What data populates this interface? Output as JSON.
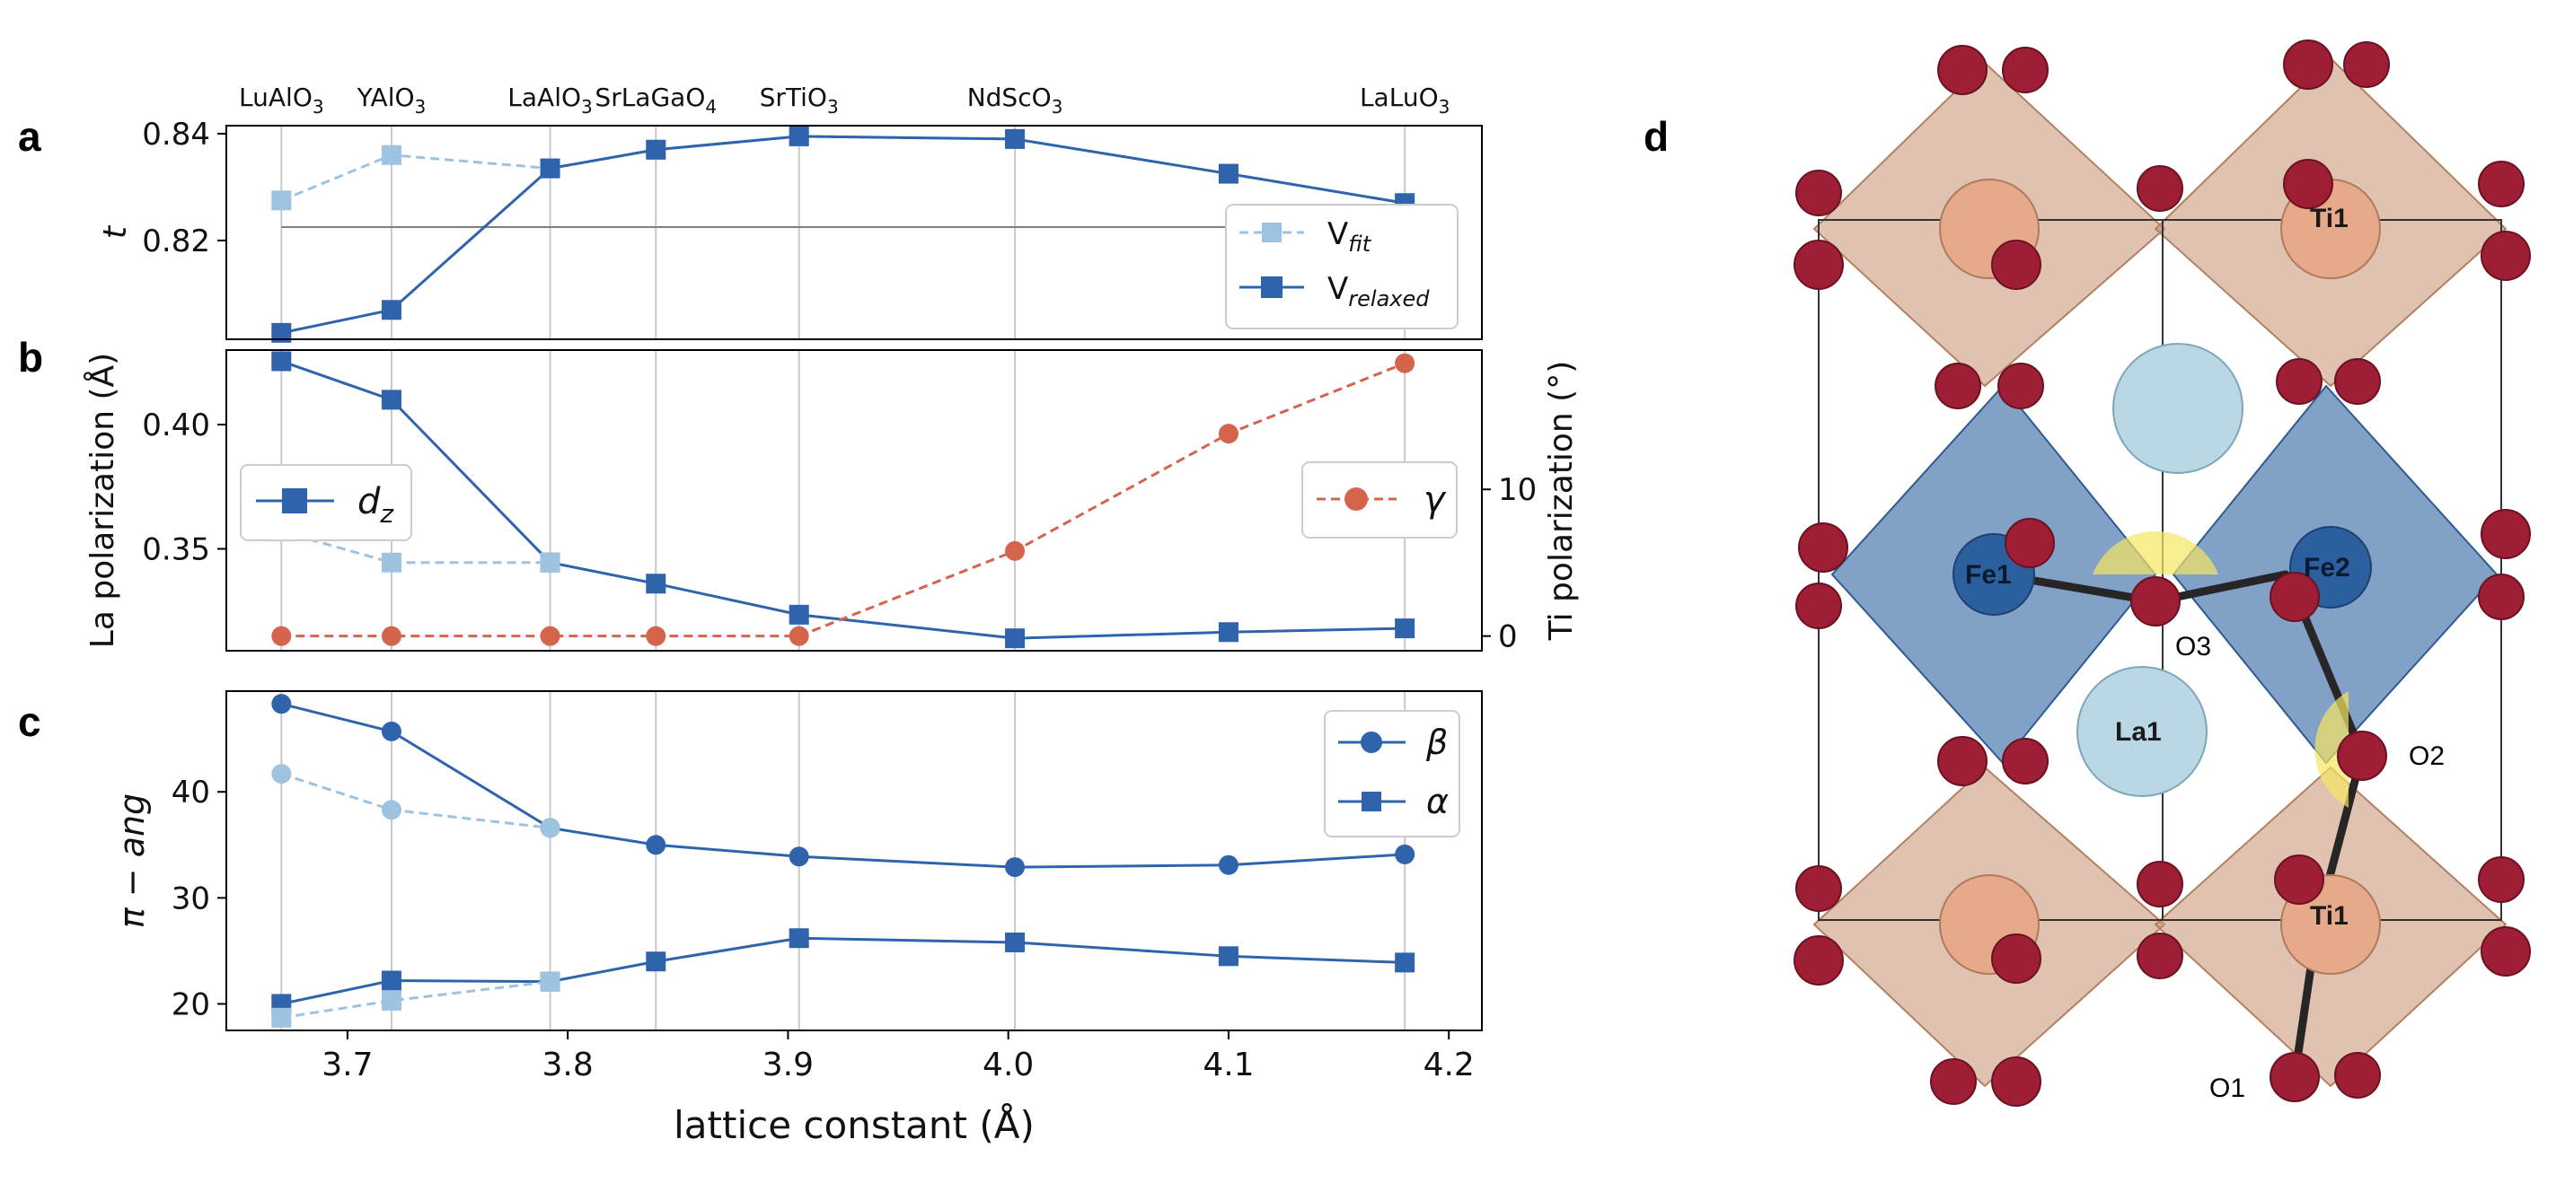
{
  "panel_labels": {
    "a": "a",
    "b": "b",
    "c": "c",
    "d": "d"
  },
  "colors": {
    "dark": "#2f64ad",
    "light": "#9dc3e0",
    "orange": "#d4654c",
    "grid": "#c8c8c8",
    "ref": "#7f7f7f"
  },
  "x_axis": {
    "label": "lattice constant (Å)",
    "range": [
      3.645,
      4.215
    ],
    "ticks": [
      "3.7",
      "3.8",
      "3.9",
      "4.0",
      "4.1",
      "4.2"
    ]
  },
  "substrates": [
    {
      "name": "LuAlO",
      "sub": "3",
      "x": 3.67
    },
    {
      "name": "YAlO",
      "sub": "3",
      "x": 3.72
    },
    {
      "name": "LaAlO",
      "sub": "3",
      "x": 3.792
    },
    {
      "name": "SrLaGaO",
      "sub": "4",
      "x": 3.84
    },
    {
      "name": "SrTiO",
      "sub": "3",
      "x": 3.905
    },
    {
      "name": "NdScO",
      "sub": "3",
      "x": 4.003
    },
    {
      "name": "LaLuO",
      "sub": "3",
      "x": 4.18
    }
  ],
  "chart_data": [
    {
      "panel": "a",
      "type": "line",
      "ylabel": "t",
      "ylim": [
        0.8015,
        0.8415
      ],
      "yticks": [
        "0.82",
        "0.84"
      ],
      "reference_line": 0.8225,
      "series": [
        {
          "name": "V",
          "sub": "fit",
          "style": "light-dashed-square",
          "x": [
            3.67,
            3.72,
            3.792,
            3.84,
            3.905,
            4.003,
            4.1,
            4.18
          ],
          "values": [
            0.8275,
            0.836,
            0.8335,
            0.837,
            0.8395,
            0.839,
            0.8325,
            0.827
          ]
        },
        {
          "name": "V",
          "sub": "relaxed",
          "style": "dark-solid-square",
          "x": [
            3.67,
            3.72,
            3.792,
            3.84,
            3.905,
            4.003,
            4.1,
            4.18
          ],
          "values": [
            0.8027,
            0.807,
            0.8335,
            0.837,
            0.8395,
            0.839,
            0.8325,
            0.827
          ]
        }
      ]
    },
    {
      "panel": "b",
      "type": "line",
      "ylabel": "La polarization (Å)",
      "ylim": [
        0.309,
        0.43
      ],
      "yticks": [
        "0.35",
        "0.40"
      ],
      "y2label": "Ti polarization (°)",
      "y2lim": [
        -1.0,
        19.5
      ],
      "y2ticks": [
        "0",
        "10"
      ],
      "series": [
        {
          "name": "d",
          "sub": "z",
          "axis": "left",
          "style": "dark-solid-square",
          "x": [
            3.67,
            3.72,
            3.792,
            3.84,
            3.905,
            4.003,
            4.1,
            4.18
          ],
          "values": [
            0.4255,
            0.41,
            0.3445,
            0.336,
            0.3235,
            0.314,
            0.3165,
            0.318
          ]
        },
        {
          "name": "d",
          "sub": "z,fit",
          "axis": "left",
          "legend": false,
          "style": "light-dashed-square",
          "x": [
            3.67,
            3.72,
            3.792
          ],
          "values": [
            0.357,
            0.3445,
            0.3445
          ]
        },
        {
          "name": "γ",
          "sub": "",
          "axis": "right",
          "style": "orange-dashed-circle",
          "x": [
            3.67,
            3.72,
            3.792,
            3.84,
            3.905,
            4.003,
            4.1,
            4.18
          ],
          "values": [
            0,
            0,
            0,
            0,
            0,
            5.8,
            13.8,
            18.6
          ]
        }
      ]
    },
    {
      "panel": "c",
      "type": "line",
      "ylabel": "π −  ang",
      "ylim": [
        17.5,
        49.5
      ],
      "yticks": [
        "20",
        "30",
        "40"
      ],
      "series": [
        {
          "name": "β",
          "sub": "",
          "style": "dark-solid-circle",
          "x": [
            3.67,
            3.72,
            3.792,
            3.84,
            3.905,
            4.003,
            4.1,
            4.18
          ],
          "values": [
            48.3,
            45.7,
            36.6,
            35.0,
            33.9,
            32.9,
            33.1,
            34.1
          ]
        },
        {
          "name": "β",
          "sub": "fit",
          "legend": false,
          "style": "light-dashed-circle",
          "x": [
            3.67,
            3.72,
            3.792
          ],
          "values": [
            41.7,
            38.3,
            36.6
          ]
        },
        {
          "name": "α",
          "sub": "",
          "style": "dark-solid-square",
          "x": [
            3.67,
            3.72,
            3.792,
            3.84,
            3.905,
            4.003,
            4.1,
            4.18
          ],
          "values": [
            20.0,
            22.2,
            22.1,
            24.0,
            26.2,
            25.8,
            24.5,
            23.9
          ]
        },
        {
          "name": "α",
          "sub": "fit",
          "legend": false,
          "style": "light-dashed-square",
          "x": [
            3.67,
            3.72,
            3.792
          ],
          "values": [
            18.7,
            20.3,
            22.1
          ]
        }
      ]
    }
  ],
  "structure": {
    "atom_labels": [
      "Ti1",
      "Ti1",
      "Fe1",
      "Fe2",
      "La1",
      "O3",
      "O2",
      "O1"
    ]
  }
}
